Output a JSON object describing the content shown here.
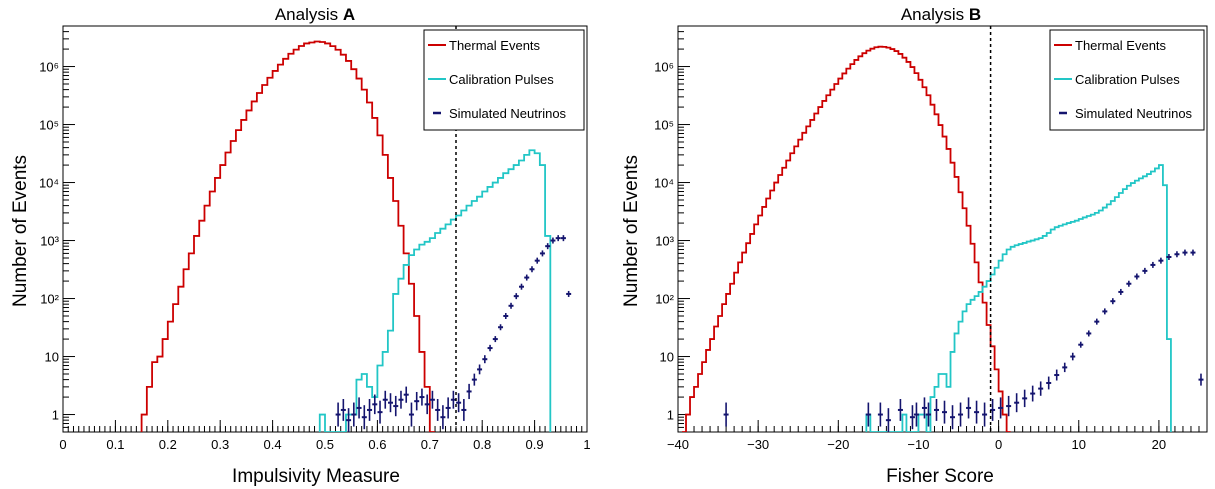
{
  "chart_data": [
    {
      "type": "histogram",
      "title_prefix": "Analysis ",
      "title_bold": "A",
      "xlabel": "Impulsivity Measure",
      "ylabel": "Number of Events",
      "xlim": [
        0,
        1
      ],
      "ylim": [
        0.5,
        5000000
      ],
      "log_y": true,
      "x_ticks": [
        "0",
        "0.1",
        "0.2",
        "0.3",
        "0.4",
        "0.5",
        "0.6",
        "0.7",
        "0.8",
        "0.9",
        "1"
      ],
      "x_tick_values": [
        0,
        0.1,
        0.2,
        0.3,
        0.4,
        0.5,
        0.6,
        0.7,
        0.8,
        0.9,
        1.0
      ],
      "y_ticks": [
        "1",
        "10",
        "10²",
        "10³",
        "10⁴",
        "10⁵",
        "10⁶"
      ],
      "y_tick_values": [
        1,
        10,
        100,
        1000,
        10000,
        100000,
        1000000
      ],
      "cut_line_x": 0.75,
      "legend": [
        {
          "label": "Thermal Events",
          "color": "#cc0000",
          "style": "line"
        },
        {
          "label": "Calibration Pulses",
          "color": "#22c6c6",
          "style": "line"
        },
        {
          "label": "Simulated Neutrinos",
          "color": "#14146e",
          "style": "marker"
        }
      ],
      "series": [
        {
          "name": "Thermal Events",
          "color": "#cc0000",
          "kind": "step",
          "x_start": 0.15,
          "bin_width": 0.01,
          "values": [
            1,
            3,
            8,
            10,
            20,
            40,
            80,
            160,
            320,
            600,
            1200,
            2200,
            4000,
            7000,
            12000,
            20000,
            33000,
            52000,
            80000,
            120000,
            175000,
            250000,
            350000,
            480000,
            640000,
            840000,
            1080000,
            1360000,
            1660000,
            1960000,
            2260000,
            2500000,
            2600000,
            2700000,
            2650000,
            2500000,
            2250000,
            1950000,
            1600000,
            1250000,
            900000,
            620000,
            400000,
            240000,
            130000,
            65000,
            30000,
            12000,
            4800,
            1800,
            600,
            180,
            50,
            12,
            3,
            0.4
          ]
        },
        {
          "name": "Calibration Pulses",
          "color": "#22c6c6",
          "kind": "step",
          "x_start": 0.49,
          "bin_width": 0.01,
          "values": [
            1,
            0.4,
            0.4,
            0.4,
            0.4,
            1,
            1,
            4,
            5,
            3,
            2,
            7,
            12,
            28,
            120,
            220,
            380,
            560,
            700,
            850,
            950,
            1100,
            1350,
            1600,
            1900,
            2300,
            2700,
            3300,
            4000,
            4800,
            5700,
            7000,
            8400,
            10000,
            12000,
            14500,
            17000,
            20000,
            24000,
            30000,
            36000,
            32000,
            20000,
            1200
          ]
        },
        {
          "name": "Simulated Neutrinos",
          "color": "#14146e",
          "kind": "markers",
          "x": [
            0.525,
            0.535,
            0.545,
            0.555,
            0.565,
            0.575,
            0.585,
            0.595,
            0.605,
            0.615,
            0.625,
            0.635,
            0.645,
            0.655,
            0.665,
            0.675,
            0.685,
            0.695,
            0.705,
            0.715,
            0.725,
            0.735,
            0.745,
            0.755,
            0.765,
            0.775,
            0.785,
            0.795,
            0.805,
            0.815,
            0.825,
            0.835,
            0.845,
            0.855,
            0.865,
            0.875,
            0.885,
            0.895,
            0.905,
            0.915,
            0.925,
            0.935,
            0.945,
            0.955,
            0.965
          ],
          "y": [
            1.0,
            1.2,
            0.8,
            1.0,
            1.3,
            0.9,
            1.2,
            1.5,
            1.1,
            1.8,
            1.6,
            1.4,
            1.8,
            2.2,
            1.0,
            1.7,
            2.0,
            1.5,
            1.8,
            1.2,
            0.9,
            1.3,
            1.8,
            1.6,
            1.2,
            2.5,
            4.0,
            6.0,
            9.0,
            14,
            20,
            32,
            50,
            75,
            110,
            160,
            230,
            320,
            450,
            600,
            800,
            1000,
            1100,
            1100,
            120
          ]
        }
      ]
    },
    {
      "type": "histogram",
      "title_prefix": "Analysis ",
      "title_bold": "B",
      "xlabel": "Fisher Score",
      "ylabel": "Number of Events",
      "xlim": [
        -40,
        26
      ],
      "ylim": [
        0.5,
        5000000
      ],
      "log_y": true,
      "x_ticks": [
        "−40",
        "−30",
        "−20",
        "−10",
        "0",
        "10",
        "20"
      ],
      "x_tick_values": [
        -40,
        -30,
        -20,
        -10,
        0,
        10,
        20
      ],
      "y_ticks": [
        "1",
        "10",
        "10²",
        "10³",
        "10⁴",
        "10⁵",
        "10⁶"
      ],
      "y_tick_values": [
        1,
        10,
        100,
        1000,
        10000,
        100000,
        1000000
      ],
      "cut_line_x": -1,
      "legend": [
        {
          "label": "Thermal Events",
          "color": "#cc0000",
          "style": "line"
        },
        {
          "label": "Calibration Pulses",
          "color": "#22c6c6",
          "style": "line"
        },
        {
          "label": "Simulated Neutrinos",
          "color": "#14146e",
          "style": "marker"
        }
      ],
      "series": [
        {
          "name": "Thermal Events",
          "color": "#cc0000",
          "kind": "step",
          "x_start": -39.5,
          "bin_width": 0.5,
          "values": [
            0.5,
            1,
            2,
            3,
            5,
            8,
            13,
            20,
            33,
            50,
            80,
            120,
            180,
            280,
            420,
            620,
            900,
            1300,
            1900,
            2700,
            3800,
            5300,
            7300,
            10000,
            13500,
            18000,
            24000,
            32000,
            42000,
            55000,
            72000,
            93000,
            120000,
            155000,
            200000,
            255000,
            320000,
            400000,
            500000,
            620000,
            760000,
            920000,
            1100000,
            1300000,
            1500000,
            1700000,
            1880000,
            2030000,
            2150000,
            2200000,
            2180000,
            2120000,
            2000000,
            1850000,
            1650000,
            1420000,
            1200000,
            980000,
            770000,
            590000,
            440000,
            320000,
            220000,
            150000,
            98000,
            62000,
            38000,
            22000,
            12500,
            6800,
            3600,
            1800,
            880,
            420,
            190,
            85,
            35,
            15,
            6,
            2.5,
            1,
            0.4
          ]
        },
        {
          "name": "Calibration Pulses",
          "color": "#22c6c6",
          "kind": "step",
          "x_start": -16.5,
          "bin_width": 0.5,
          "values": [
            1,
            0.4,
            0.4,
            0.4,
            0.4,
            0.4,
            0.4,
            0.4,
            0.4,
            1,
            0.4,
            0.4,
            0.4,
            1,
            1,
            0.4,
            2,
            3,
            5,
            5,
            3,
            12,
            25,
            40,
            60,
            80,
            95,
            110,
            130,
            160,
            200,
            260,
            340,
            450,
            580,
            700,
            780,
            830,
            870,
            910,
            960,
            1000,
            1050,
            1100,
            1200,
            1350,
            1550,
            1700,
            1800,
            1900,
            2000,
            2100,
            2200,
            2350,
            2500,
            2650,
            2800,
            3000,
            3300,
            3700,
            4200,
            4800,
            5600,
            6600,
            7700,
            8800,
            9800,
            10800,
            11800,
            12800,
            14000,
            15500,
            17500,
            20000,
            9000,
            20
          ]
        },
        {
          "name": "Simulated Neutrinos",
          "color": "#14146e",
          "kind": "markers",
          "x": [
            -34,
            -16.25,
            -14.75,
            -13.75,
            -12.25,
            -10.75,
            -10.25,
            -9.25,
            -8.75,
            -7.75,
            -6.75,
            -5.75,
            -4.75,
            -3.75,
            -2.75,
            -1.75,
            -0.75,
            0.25,
            1.25,
            2.25,
            3.25,
            4.25,
            5.25,
            6.25,
            7.25,
            8.25,
            9.25,
            10.25,
            11.25,
            12.25,
            13.25,
            14.25,
            15.25,
            16.25,
            17.25,
            18.25,
            19.25,
            20.25,
            21.25,
            22.25,
            23.25,
            24.25,
            25.25
          ],
          "y": [
            1,
            1,
            1,
            0.8,
            1.2,
            0.9,
            1.0,
            1.3,
            1.0,
            1.2,
            1.1,
            0.9,
            1.0,
            1.3,
            1.1,
            1.0,
            1.2,
            1.3,
            1.4,
            1.6,
            1.9,
            2.3,
            2.8,
            3.5,
            4.8,
            6.5,
            10,
            16,
            25,
            40,
            60,
            90,
            130,
            180,
            240,
            300,
            380,
            450,
            520,
            580,
            620,
            620,
            4
          ]
        }
      ]
    }
  ]
}
